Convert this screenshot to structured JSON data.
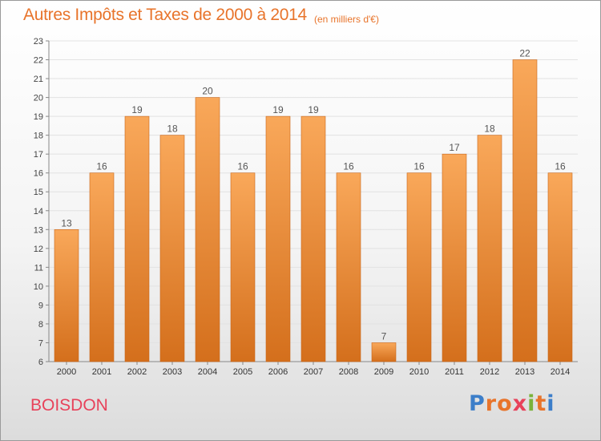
{
  "header": {
    "title": "Autres Impôts et Taxes de 2000 à 2014",
    "subtitle": "(en milliers d'€)"
  },
  "footer": {
    "commune": "BOISDON",
    "logo_text": "Proxiti"
  },
  "colors": {
    "accent": "#e8742b",
    "commune": "#e8425a",
    "bar_top": "#f9a85a",
    "bar_bottom": "#d46f1c",
    "logo_letters": [
      "#3c7ec9",
      "#e8742b",
      "#e8742b",
      "#e8425a",
      "#7ab33a",
      "#e8742b",
      "#3c7ec9"
    ]
  },
  "chart_data": {
    "type": "bar",
    "categories": [
      "2000",
      "2001",
      "2002",
      "2003",
      "2004",
      "2005",
      "2006",
      "2007",
      "2008",
      "2009",
      "2010",
      "2011",
      "2012",
      "2013",
      "2014"
    ],
    "values": [
      13,
      16,
      19,
      18,
      20,
      16,
      19,
      19,
      16,
      7,
      16,
      17,
      18,
      22,
      16
    ],
    "ylim": [
      6,
      23
    ],
    "yticks": [
      6,
      7,
      8,
      9,
      10,
      11,
      12,
      13,
      14,
      15,
      16,
      17,
      18,
      19,
      20,
      21,
      22,
      23
    ],
    "grid": true,
    "data_labels": true
  }
}
